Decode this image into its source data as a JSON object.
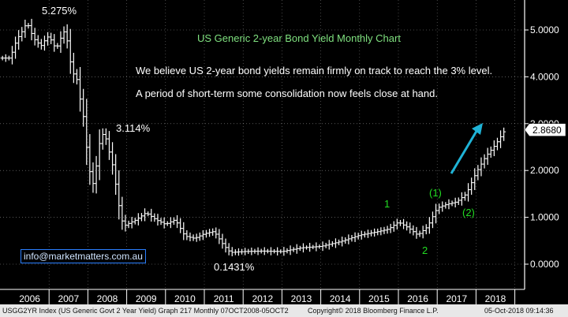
{
  "chart_data": {
    "type": "line",
    "title": "US Generic 2-year Bond Yield Monthly Chart",
    "commentary": [
      "We believe US 2-year bond yields remain firmly on track to reach the 3% level.",
      "A period of short-term some consolidation now feels close at hand."
    ],
    "ylim": [
      -0.25,
      5.6
    ],
    "yticks": [
      "0.0000",
      "1.0000",
      "2.0000",
      "3.0000",
      "4.0000",
      "5.0000"
    ],
    "ytick_values": [
      0,
      1,
      2,
      3,
      4,
      5
    ],
    "xticks": [
      "2006",
      "2007",
      "2008",
      "2009",
      "2010",
      "2011",
      "2012",
      "2013",
      "2014",
      "2015",
      "2016",
      "2017",
      "2018"
    ],
    "last_value_label": "2.8680",
    "last_value": 2.868,
    "series": [
      {
        "x": [
          2006.0,
          2006.08,
          2006.17,
          2006.25,
          2006.33,
          2006.42,
          2006.5,
          2006.58,
          2006.67,
          2006.75,
          2006.83,
          2006.92,
          2007.0,
          2007.08,
          2007.17,
          2007.25,
          2007.33,
          2007.42,
          2007.5,
          2007.58,
          2007.67,
          2007.75,
          2007.83,
          2007.92,
          2008.0,
          2008.08,
          2008.17,
          2008.25,
          2008.33,
          2008.42,
          2008.5,
          2008.58,
          2008.67,
          2008.75,
          2008.83,
          2008.92,
          2009.0,
          2009.25,
          2009.5,
          2009.75,
          2010.0,
          2010.25,
          2010.5,
          2010.75,
          2011.0,
          2011.25,
          2011.5,
          2011.67,
          2012.0,
          2012.5,
          2013.0,
          2013.5,
          2014.0,
          2014.5,
          2015.0,
          2015.5,
          2015.75,
          2016.0,
          2016.25,
          2016.5,
          2016.75,
          2017.0,
          2017.25,
          2017.5,
          2017.75,
          2018.0,
          2018.25,
          2018.5,
          2018.75
        ],
        "values": [
          4.4,
          4.6,
          4.8,
          4.9,
          5.0,
          5.15,
          5.05,
          4.85,
          4.75,
          4.7,
          4.65,
          4.85,
          4.85,
          4.75,
          4.6,
          4.7,
          4.9,
          5.0,
          4.6,
          4.15,
          4.0,
          3.9,
          3.3,
          3.05,
          2.1,
          1.9,
          1.6,
          2.45,
          2.65,
          2.85,
          2.55,
          2.3,
          2.0,
          1.5,
          1.1,
          0.8,
          0.85,
          0.95,
          1.1,
          0.95,
          0.85,
          0.95,
          0.6,
          0.55,
          0.65,
          0.7,
          0.4,
          0.25,
          0.27,
          0.28,
          0.27,
          0.35,
          0.38,
          0.48,
          0.62,
          0.7,
          0.75,
          0.9,
          0.78,
          0.62,
          0.8,
          1.2,
          1.28,
          1.33,
          1.5,
          1.95,
          2.3,
          2.55,
          2.868
        ]
      }
    ],
    "annotations": {
      "peak_high": "5.275%",
      "peak_2008": "3.114%",
      "low_2011": "0.1431%",
      "wave_1": "1",
      "wave_2": "2",
      "wave_p1": "(1)",
      "wave_p2": "(2)"
    }
  },
  "contact_box": "info@marketmatters.com.au",
  "colors": {
    "bars": "#ffffff",
    "arrow": "#1fb3d6",
    "title": "#7fe07f",
    "wave": "#22dd22",
    "grid": "#ffffff"
  },
  "footer": {
    "left": "USGG2YR Index (US Generic Govt 2 Year Yield) Graph 217  Monthly 07OCT2008-05OCT2",
    "middle": "Copyright© 2018 Bloomberg Finance L.P.",
    "right": "05-Oct-2018 09:14:36"
  }
}
